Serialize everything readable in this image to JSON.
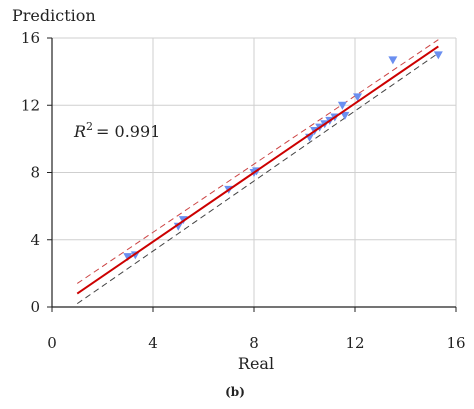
{
  "chart_data": {
    "type": "scatter",
    "title": "",
    "ylabel": "Prediction",
    "xlabel": "Real",
    "caption": "(b)",
    "xlim": [
      0,
      16
    ],
    "ylim": [
      0,
      16
    ],
    "xticks": [
      "0",
      "4",
      "8",
      "12",
      "16"
    ],
    "yticks": [
      "0",
      "4",
      "8",
      "12",
      "16"
    ],
    "xtick_values": [
      0,
      4,
      8,
      12,
      16
    ],
    "ytick_values": [
      0,
      4,
      8,
      12,
      16
    ],
    "grid": true,
    "annotation": {
      "r2_symbol": "R",
      "r2_exponent": "2",
      "r2_value": "= 0.991"
    },
    "series": [
      {
        "marker": "triangle-down",
        "color": "#6b8ff0",
        "x": [
          3.0,
          3.3,
          5.0,
          5.2,
          7.0,
          8.0,
          8.1,
          10.2,
          10.4,
          10.6,
          10.8,
          11.0,
          11.2,
          11.5,
          11.6,
          12.1,
          13.5,
          15.3
        ],
        "y": [
          3.0,
          3.1,
          4.8,
          5.2,
          7.0,
          8.0,
          8.1,
          10.1,
          10.5,
          10.7,
          10.9,
          11.1,
          11.3,
          12.0,
          11.4,
          12.5,
          14.7,
          15.0
        ]
      }
    ],
    "fit_line": {
      "color": "#cc0000",
      "x": [
        1.0,
        15.3
      ],
      "y": [
        0.8,
        15.5
      ]
    },
    "upper_band": {
      "color": "#cc4444",
      "style": "dashed",
      "x": [
        1.0,
        15.3
      ],
      "y": [
        1.4,
        15.9
      ]
    },
    "lower_band": {
      "color": "#444444",
      "style": "dashed",
      "x": [
        1.0,
        15.3
      ],
      "y": [
        0.2,
        15.1
      ]
    }
  }
}
